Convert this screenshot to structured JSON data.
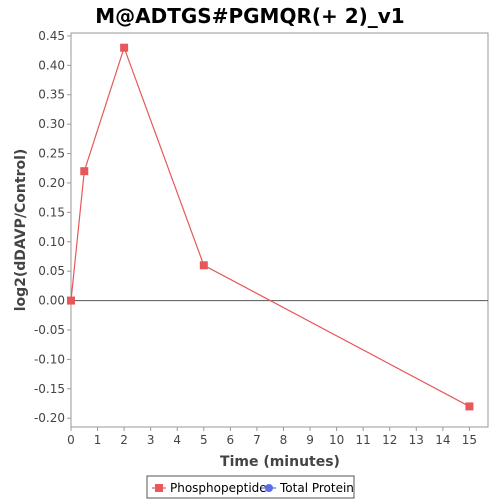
{
  "chart_data": {
    "type": "line",
    "title": "M@ADTGS#PGMQR(+ 2)_v1",
    "xlabel": "Time (minutes)",
    "ylabel": "log2(dDAVP/Control)",
    "xlim": [
      0,
      15.7
    ],
    "ylim": [
      -0.215,
      0.455
    ],
    "x_ticks": [
      0,
      1,
      2,
      3,
      4,
      5,
      6,
      7,
      8,
      9,
      10,
      11,
      12,
      13,
      14,
      15
    ],
    "y_ticks": [
      0.45,
      0.4,
      0.35,
      0.3,
      0.25,
      0.2,
      0.15,
      0.1,
      0.05,
      0.0,
      -0.05,
      -0.1,
      -0.15,
      -0.2
    ],
    "y_tick_labels": [
      "0.45",
      "0.40",
      "0.35",
      "0.30",
      "0.25",
      "0.20",
      "0.15",
      "0.10",
      "0.05",
      "0.00",
      "-0.05",
      "-0.10",
      "-0.15",
      "-0.20"
    ],
    "zero_line": true,
    "grid": false,
    "legend_position": "bottom",
    "series": [
      {
        "name": "Phosphopeptide",
        "color": "#e8575a",
        "marker": "square",
        "x": [
          0,
          0.5,
          2,
          5,
          15
        ],
        "y": [
          0.0,
          0.22,
          0.43,
          0.06,
          -0.18
        ]
      },
      {
        "name": "Total Protein",
        "color": "#5b6ee8",
        "marker": "circle",
        "x": [],
        "y": []
      }
    ]
  }
}
